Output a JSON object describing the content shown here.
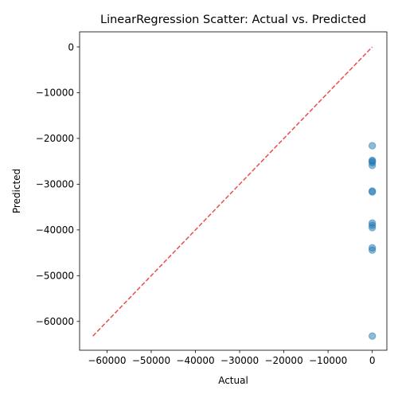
{
  "chart_data": {
    "type": "scatter",
    "title": "LinearRegression Scatter: Actual vs. Predicted",
    "xlabel": "Actual",
    "ylabel": "Predicted",
    "xlim": [
      -66200,
      3300
    ],
    "ylim": [
      -66300,
      3300
    ],
    "xticks": [
      -60000,
      -50000,
      -40000,
      -30000,
      -20000,
      -10000,
      0
    ],
    "yticks": [
      0,
      -10000,
      -20000,
      -30000,
      -40000,
      -50000,
      -60000
    ],
    "tick_labels_x": [
      "−60000",
      "−50000",
      "−40000",
      "−30000",
      "−20000",
      "−10000",
      "0"
    ],
    "tick_labels_y": [
      "0",
      "−10000",
      "−20000",
      "−30000",
      "−40000",
      "−50000",
      "−60000"
    ],
    "grid": false,
    "points": [
      {
        "x": 0,
        "y": -21600
      },
      {
        "x": 0,
        "y": -24800
      },
      {
        "x": 0,
        "y": -25000
      },
      {
        "x": 0,
        "y": -25300
      },
      {
        "x": 0,
        "y": -25900
      },
      {
        "x": 0,
        "y": -31500
      },
      {
        "x": 0,
        "y": -31700
      },
      {
        "x": 0,
        "y": -38500
      },
      {
        "x": 0,
        "y": -39000
      },
      {
        "x": 0,
        "y": -39500
      },
      {
        "x": 0,
        "y": -43900
      },
      {
        "x": 0,
        "y": -44400
      },
      {
        "x": 0,
        "y": -63200
      }
    ],
    "reference_line": {
      "x": [
        -63200,
        0
      ],
      "y": [
        -63200,
        0
      ]
    },
    "colors": {
      "points": "#1f77b4",
      "reference_line": "#e83a3a"
    }
  }
}
